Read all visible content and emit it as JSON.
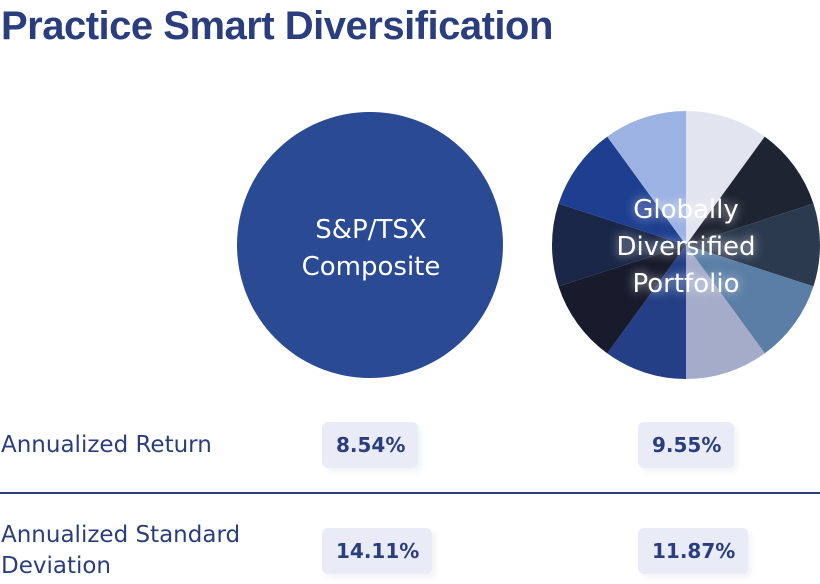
{
  "header": {
    "title": "Practice Smart Diversification"
  },
  "chart_data": {
    "type": "pie",
    "charts": [
      {
        "label_lines": [
          "S&P/TSX",
          "Composite"
        ],
        "slices": [
          {
            "value": 1,
            "color": "#2a4a93"
          }
        ]
      },
      {
        "label_lines": [
          "Globally",
          "Diversified",
          "Portfolio"
        ],
        "slices": [
          {
            "value": 1,
            "color": "#e2e4ef"
          },
          {
            "value": 1,
            "color": "#1f2433"
          },
          {
            "value": 1,
            "color": "#2c3a4f"
          },
          {
            "value": 1,
            "color": "#5a7ea5"
          },
          {
            "value": 1,
            "color": "#a4acca"
          },
          {
            "value": 1,
            "color": "#243f86"
          },
          {
            "value": 1,
            "color": "#181b2c"
          },
          {
            "value": 1,
            "color": "#1a2748"
          },
          {
            "value": 1,
            "color": "#1e3f90"
          },
          {
            "value": 1,
            "color": "#9cb2e2"
          }
        ]
      }
    ]
  },
  "table": {
    "rows": [
      {
        "label_lines": [
          "Annualized Return"
        ],
        "values": [
          "8.54%",
          "9.55%"
        ]
      },
      {
        "label_lines": [
          "Annualized Standard",
          "Deviation"
        ],
        "values": [
          "14.11%",
          "11.87%"
        ]
      }
    ]
  },
  "colors": {
    "accent": "#2a3e7e",
    "pill_bg": "#e9ebf7"
  }
}
